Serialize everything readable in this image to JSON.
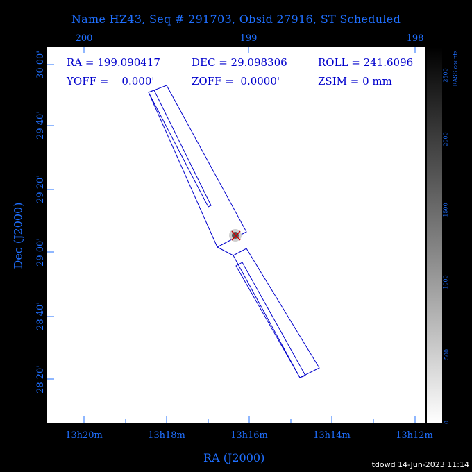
{
  "title": "Name HZ43, Seq # 291703, Obsid 27916, ST Scheduled",
  "info": {
    "ra": "RA = 199.090417",
    "dec": "DEC = 29.098306",
    "roll": "ROLL = 241.6096",
    "yoff": "YOFF =    0.000'",
    "zoff": "ZOFF =  0.0000'",
    "zsim": "ZSIM = 0 mm"
  },
  "top_ticks": [
    "200",
    "199",
    "198"
  ],
  "bottom_ticks": [
    "13h20m",
    "13h18m",
    "13h16m",
    "13h14m",
    "13h12m"
  ],
  "left_ticks": [
    "30 00'",
    "29 40'",
    "29 20'",
    "29 00'",
    "28 40'",
    "28 20'"
  ],
  "xlabel": "RA (J2000)",
  "ylabel": "Dec (J2000)",
  "colorbar": {
    "label": "RASS counts",
    "ticks": [
      "0",
      "500",
      "1000",
      "1500",
      "2000",
      "2500"
    ]
  },
  "footer": "tdowd 14-Jun-2023 11:14",
  "colors": {
    "axis": "#1f6fff",
    "detector": "#0000cc",
    "target": "#cc0000"
  },
  "chart_data": {
    "type": "scatter",
    "title": "Name HZ43, Seq # 291703, Obsid 27916, ST Scheduled",
    "xlabel": "RA (J2000)",
    "ylabel": "Dec (J2000)",
    "xlim_deg": [
      200.2,
      197.95
    ],
    "ylim_deg": [
      28.1,
      30.05
    ],
    "target": {
      "ra": 199.090417,
      "dec": 29.098306
    }
  }
}
